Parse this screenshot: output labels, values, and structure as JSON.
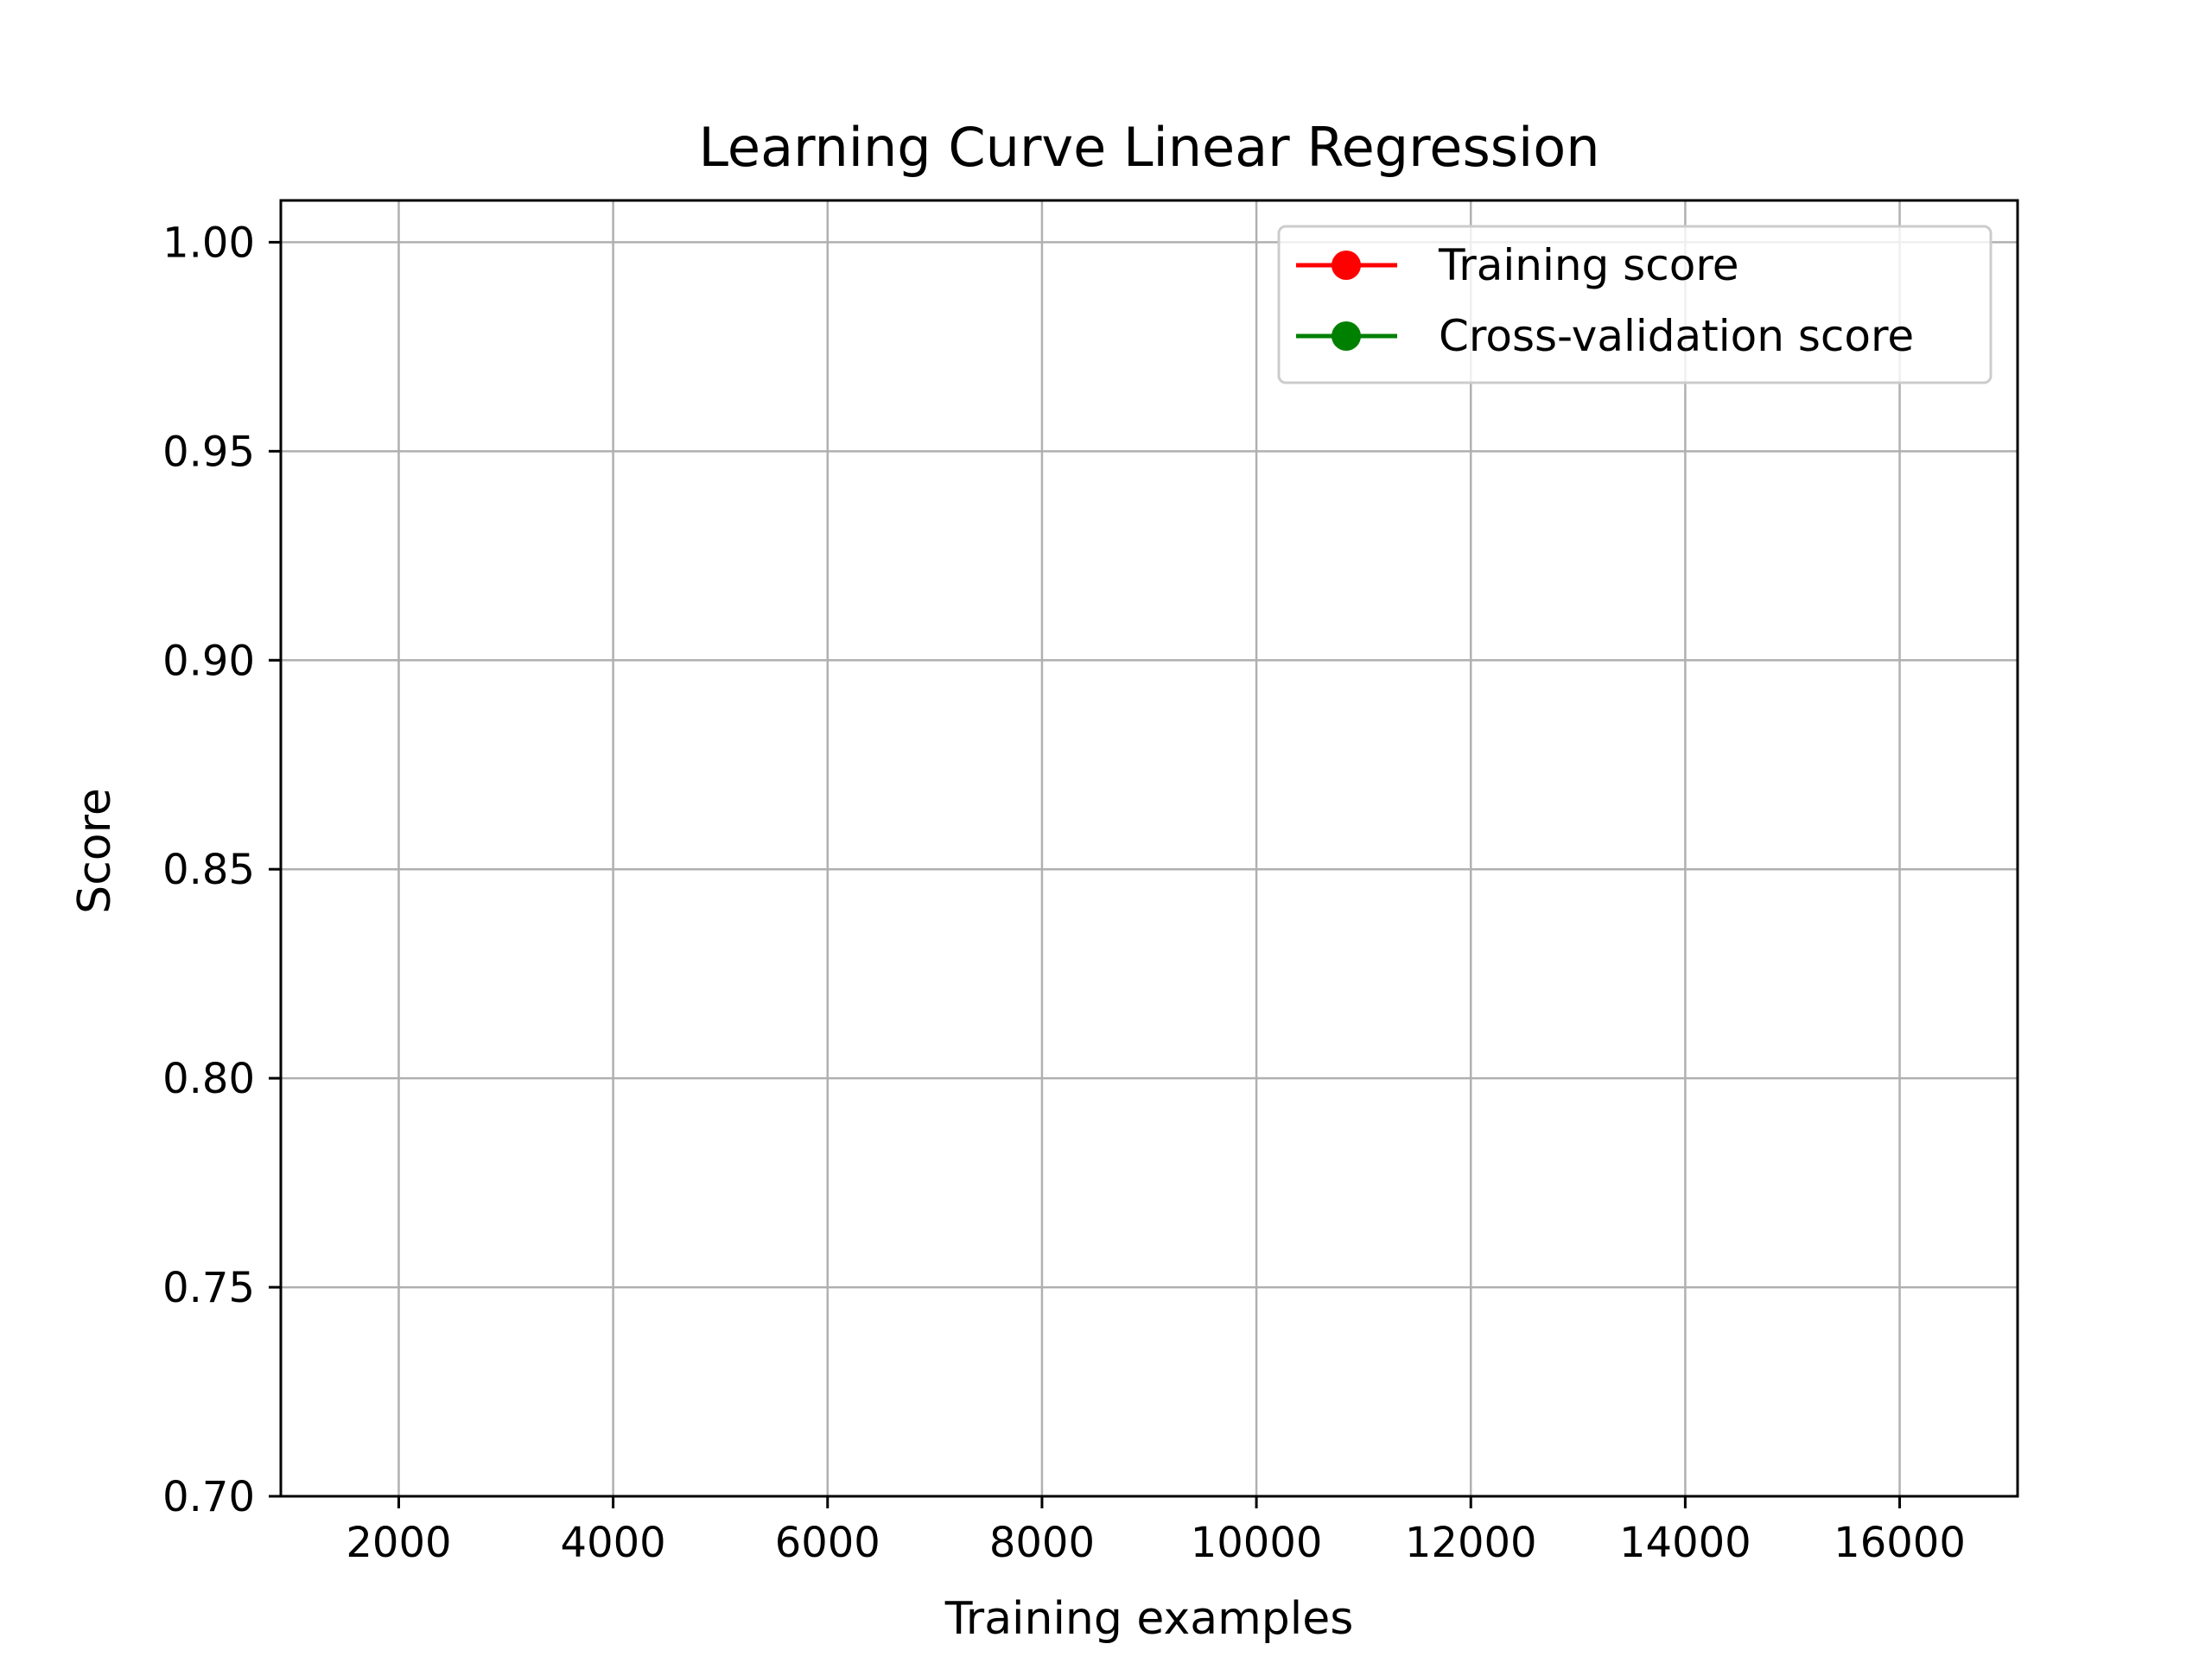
{
  "chart_data": {
    "type": "line",
    "title": "Learning Curve Linear Regression",
    "xlabel": "Training examples",
    "ylabel": "Score",
    "xlim": [
      900,
      17100
    ],
    "ylim": [
      0.7,
      1.01
    ],
    "x_ticks": [
      2000,
      4000,
      6000,
      8000,
      10000,
      12000,
      14000,
      16000
    ],
    "x_tick_labels": [
      "2000",
      "4000",
      "6000",
      "8000",
      "10000",
      "12000",
      "14000",
      "16000"
    ],
    "y_ticks": [
      0.7,
      0.75,
      0.8,
      0.85,
      0.9,
      0.95,
      1.0
    ],
    "y_tick_labels": [
      "0.70",
      "0.75",
      "0.80",
      "0.85",
      "0.90",
      "0.95",
      "1.00"
    ],
    "grid": true,
    "legend_position": "top-right",
    "series": [
      {
        "name": "Training score",
        "color": "#ff0000",
        "marker": "circle",
        "x": [],
        "y": []
      },
      {
        "name": "Cross-validation score",
        "color": "#008000",
        "marker": "circle",
        "x": [],
        "y": []
      }
    ]
  }
}
